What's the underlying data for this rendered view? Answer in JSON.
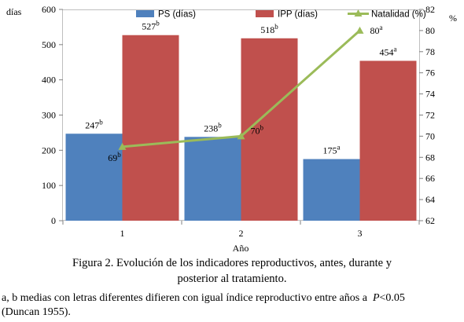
{
  "chart_data": {
    "type": "bar",
    "categories": [
      "1",
      "2",
      "3"
    ],
    "xlabel": "Año",
    "ylabel_left": "días",
    "ylabel_right": "%",
    "ylim_left": [
      0,
      600
    ],
    "yticks_left": [
      "0",
      "100",
      "200",
      "300",
      "400",
      "500",
      "600"
    ],
    "ylim_right": [
      62,
      82
    ],
    "yticks_right": [
      "62",
      "64",
      "66",
      "68",
      "70",
      "72",
      "74",
      "76",
      "78",
      "80",
      "82"
    ],
    "grid": false,
    "legend_position": "top",
    "series": [
      {
        "name": "PS (días)",
        "kind": "bar",
        "axis": "left",
        "color": "#4f81bd",
        "values": [
          247,
          238,
          175
        ],
        "labels": [
          {
            "num": "247",
            "sup": "b"
          },
          {
            "num": "238",
            "sup": "b"
          },
          {
            "num": "175",
            "sup": "a"
          }
        ]
      },
      {
        "name": "IPP (días)",
        "kind": "bar",
        "axis": "left",
        "color": "#c0504d",
        "values": [
          527,
          518,
          454
        ],
        "labels": [
          {
            "num": "527",
            "sup": "b"
          },
          {
            "num": "518",
            "sup": "b"
          },
          {
            "num": "454",
            "sup": "a"
          }
        ]
      },
      {
        "name": "Natalidad (%)",
        "kind": "line",
        "axis": "right",
        "color": "#9bbb59",
        "values": [
          69,
          70,
          80
        ],
        "labels": [
          {
            "num": "69",
            "sup": "b"
          },
          {
            "num": "70",
            "sup": "b"
          },
          {
            "num": "80",
            "sup": "a"
          }
        ]
      }
    ]
  },
  "caption": {
    "line1": "Figura 2. Evolución de los indicadores reproductivos, antes, durante y",
    "line2": "posterior al tratamiento."
  },
  "footnote": {
    "line1_text": "a, b medias con letras diferentes difieren con igual índice reproductivo entre años a",
    "line1_p": "P",
    "line1_rest": "<0.05",
    "line2": "(Duncan 1955)."
  }
}
